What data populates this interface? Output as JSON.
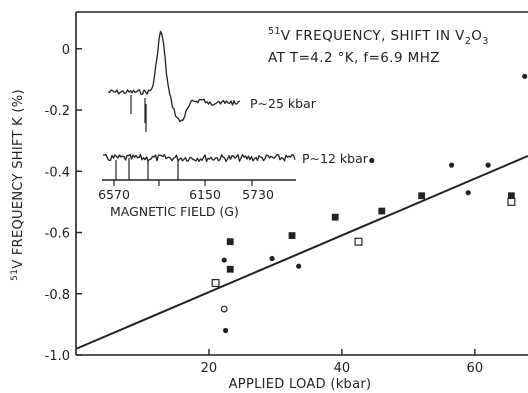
{
  "chart_data": {
    "type": "scatter",
    "title_line1_sup": "51",
    "title_line1_text": "V FREQUENCY, SHIFT IN V",
    "title_line1_sub1": "2",
    "title_line1_mid": "O",
    "title_line1_sub2": "3",
    "title_line2": "AT T=4.2 °K, f=6.9 MHZ",
    "ylabel_sup": "51",
    "ylabel_text": "V FREQUENCY SHIFT  K (%)",
    "xlabel": "APPLIED LOAD (kbar)",
    "xlim": [
      0,
      68
    ],
    "ylim": [
      -1.0,
      0.12
    ],
    "x_ticks": [
      20,
      40,
      60
    ],
    "y_ticks": [
      0,
      -0.2,
      -0.4,
      -0.6,
      -0.8,
      -1.0
    ],
    "y_tick_labels": [
      "0",
      "-0.2",
      "-0.4",
      "-0.6",
      "-0.8",
      "-1.0"
    ],
    "series": [
      {
        "marker": "filled-circle",
        "points": [
          {
            "x": 22.3,
            "y": -0.69
          },
          {
            "x": 22.5,
            "y": -0.92
          },
          {
            "x": 29.5,
            "y": -0.685
          },
          {
            "x": 33.5,
            "y": -0.71
          },
          {
            "x": 44.5,
            "y": -0.365
          },
          {
            "x": 56.5,
            "y": -0.38
          },
          {
            "x": 59,
            "y": -0.47
          },
          {
            "x": 62,
            "y": -0.38
          },
          {
            "x": 67.5,
            "y": -0.09
          }
        ]
      },
      {
        "marker": "filled-square",
        "points": [
          {
            "x": 23.2,
            "y": -0.63
          },
          {
            "x": 23.2,
            "y": -0.72
          },
          {
            "x": 32.5,
            "y": -0.61
          },
          {
            "x": 39,
            "y": -0.55
          },
          {
            "x": 46,
            "y": -0.53
          },
          {
            "x": 52,
            "y": -0.48
          },
          {
            "x": 65.5,
            "y": -0.48
          }
        ]
      },
      {
        "marker": "open-square",
        "points": [
          {
            "x": 21,
            "y": -0.765
          },
          {
            "x": 42.5,
            "y": -0.63
          },
          {
            "x": 65.5,
            "y": -0.5
          }
        ]
      },
      {
        "marker": "open-circle",
        "points": [
          {
            "x": 22.3,
            "y": -0.85
          }
        ]
      }
    ],
    "fit_line": {
      "x": [
        0,
        68
      ],
      "y": [
        -0.98,
        -0.35
      ]
    },
    "inset": {
      "xlabel": "MAGNETIC FIELD (G)",
      "x_ticks": [
        "6570",
        "6150",
        "5730"
      ],
      "trace_labels": [
        "P∼25 kbar",
        "P∼12 kbar"
      ]
    }
  }
}
